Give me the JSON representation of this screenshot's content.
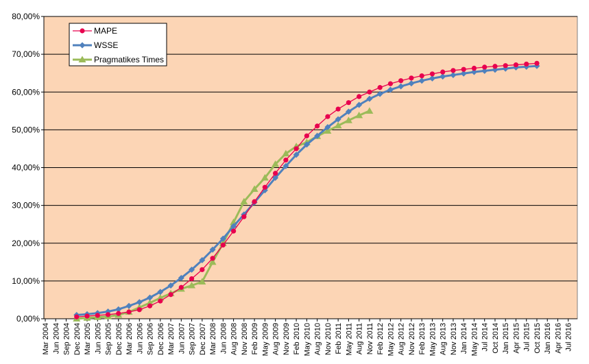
{
  "chart_data": {
    "type": "line",
    "title": "",
    "xlabel": "",
    "ylabel": "",
    "ylim": [
      0,
      0.8
    ],
    "yticks": [
      0,
      0.1,
      0.2,
      0.3,
      0.4,
      0.5,
      0.6,
      0.7,
      0.8
    ],
    "ytick_labels": [
      "0,00%",
      "10,00%",
      "20,00%",
      "30,00%",
      "40,00%",
      "50,00%",
      "60,00%",
      "70,00%",
      "80,00%"
    ],
    "grid": "horizontal",
    "plot_background": "#FCD5B5",
    "legend_position": "top-left",
    "x_categories": [
      "Mar 2004",
      "Jun 2004",
      "Sep 2004",
      "Dec 2004",
      "Mar 2005",
      "Jun 2005",
      "Sep 2005",
      "Dec 2005",
      "Mar 2006",
      "Jun 2006",
      "Sep 2006",
      "Dec 2006",
      "Mar 2007",
      "Jun 2007",
      "Sep 2007",
      "Dec 2007",
      "Mar 2008",
      "Jun 2008",
      "Aug 2008",
      "Nov 2008",
      "Feb 2009",
      "May 2009",
      "Aug 2009",
      "Nov 2009",
      "Feb 2010",
      "May 2010",
      "Aug 2010",
      "Nov 2010",
      "Feb 2011",
      "May 2011",
      "Aug 2011",
      "Nov 2011",
      "Feb 2012",
      "May 2012",
      "Aug 2012",
      "Nov 2012",
      "Feb 2013",
      "May 2013",
      "Aug 2013",
      "Nov 2013",
      "Jan 2014",
      "May 2014",
      "Jul 2014",
      "Oct 2014",
      "Jan 2015",
      "Apr 2015",
      "Jul 2015",
      "Oct 2015",
      "Jan 2016",
      "Apr 2016",
      "Jul 2016"
    ],
    "series": [
      {
        "name": "MAPE",
        "color": "#E8004E",
        "marker": "circle",
        "x_start_index": 3,
        "values": [
          0.005,
          0.007,
          0.009,
          0.011,
          0.014,
          0.018,
          0.024,
          0.034,
          0.047,
          0.064,
          0.083,
          0.106,
          0.13,
          0.16,
          0.195,
          0.232,
          0.27,
          0.31,
          0.348,
          0.385,
          0.42,
          0.45,
          0.484,
          0.51,
          0.535,
          0.555,
          0.572,
          0.588,
          0.6,
          0.612,
          0.622,
          0.63,
          0.637,
          0.643,
          0.648,
          0.653,
          0.657,
          0.66,
          0.663,
          0.666,
          0.668,
          0.67,
          0.672,
          0.674,
          0.676
        ]
      },
      {
        "name": "WSSE",
        "color": "#4F81BD",
        "marker": "diamond",
        "x_start_index": 3,
        "values": [
          0.01,
          0.012,
          0.015,
          0.019,
          0.025,
          0.034,
          0.044,
          0.056,
          0.071,
          0.088,
          0.108,
          0.13,
          0.155,
          0.183,
          0.212,
          0.245,
          0.276,
          0.308,
          0.34,
          0.373,
          0.404,
          0.434,
          0.461,
          0.484,
          0.507,
          0.528,
          0.548,
          0.566,
          0.582,
          0.595,
          0.606,
          0.615,
          0.623,
          0.63,
          0.636,
          0.641,
          0.645,
          0.649,
          0.653,
          0.656,
          0.659,
          0.662,
          0.665,
          0.667,
          0.669
        ]
      },
      {
        "name": "Pragmatikes Times",
        "color": "#9BBB59",
        "marker": "triangle",
        "x_start_index": 3,
        "values": [
          0.0,
          0.002,
          0.004,
          0.006,
          0.01,
          0.018,
          0.03,
          0.042,
          0.055,
          0.067,
          0.079,
          0.088,
          0.098,
          0.15,
          0.2,
          0.255,
          0.31,
          0.343,
          0.373,
          0.409,
          0.437,
          0.456,
          0.467,
          0.483,
          0.497,
          0.511,
          0.525,
          0.538,
          0.55
        ]
      }
    ]
  }
}
